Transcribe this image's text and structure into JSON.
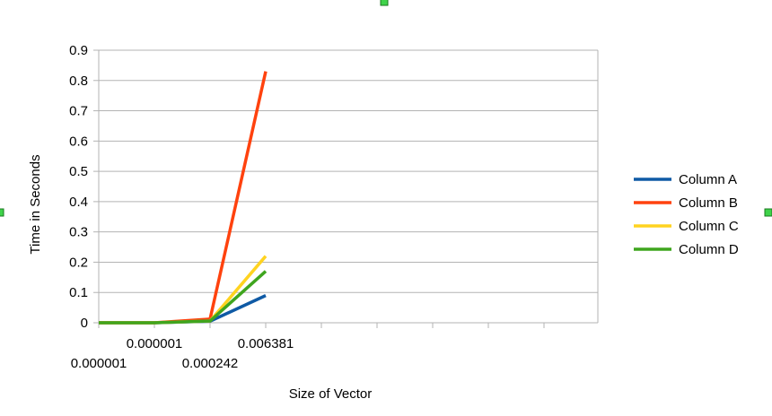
{
  "chart_data": {
    "type": "line",
    "title": "",
    "xlabel": "Size of Vector",
    "ylabel": "Time in Seconds",
    "ylim": [
      0,
      0.9
    ],
    "yticks": [
      "0",
      "0.1",
      "0.2",
      "0.3",
      "0.4",
      "0.5",
      "0.6",
      "0.7",
      "0.8",
      "0.9"
    ],
    "categories": [
      "0.000001",
      "0.000001",
      "0.000242",
      "0.006381"
    ],
    "grid": true,
    "legend_position": "right",
    "series": [
      {
        "name": "Column A",
        "color": "#0f5aa5",
        "values": [
          0.0,
          0.0,
          0.005,
          0.09
        ]
      },
      {
        "name": "Column B",
        "color": "#ff420e",
        "values": [
          0.0,
          0.0,
          0.012,
          0.83
        ]
      },
      {
        "name": "Column C",
        "color": "#ffd320",
        "values": [
          0.0,
          0.0,
          0.006,
          0.22
        ]
      },
      {
        "name": "Column D",
        "color": "#3fa51e",
        "values": [
          0.0,
          0.0,
          0.006,
          0.17
        ]
      }
    ]
  }
}
